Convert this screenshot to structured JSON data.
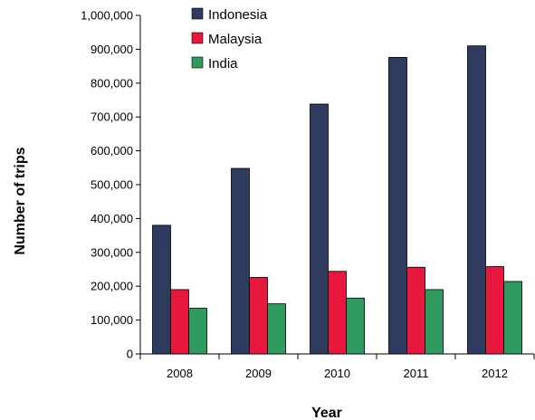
{
  "chart_data": {
    "type": "bar",
    "categories": [
      "2008",
      "2009",
      "2010",
      "2011",
      "2012"
    ],
    "series": [
      {
        "name": "Indonesia",
        "values": [
          380000,
          548000,
          738000,
          876000,
          910000
        ],
        "color": "#2e3b5f"
      },
      {
        "name": "Malaysia",
        "values": [
          190000,
          226000,
          244000,
          256000,
          258000
        ],
        "color": "#e8173e"
      },
      {
        "name": "India",
        "values": [
          135000,
          148000,
          165000,
          190000,
          214000
        ],
        "color": "#2e9a5e"
      }
    ],
    "title": "",
    "xlabel": "Year",
    "ylabel": "Number of trips",
    "ylim": [
      0,
      1000000
    ],
    "yticks": [
      0,
      100000,
      200000,
      300000,
      400000,
      500000,
      600000,
      700000,
      800000,
      900000,
      1000000
    ],
    "ytick_labels": [
      "0",
      "100,000",
      "200,000",
      "300,000",
      "400,000",
      "500,000",
      "600,000",
      "700,000",
      "800,000",
      "900,000",
      "1,000,000"
    ],
    "grid": false,
    "legend_position": "top-left"
  }
}
